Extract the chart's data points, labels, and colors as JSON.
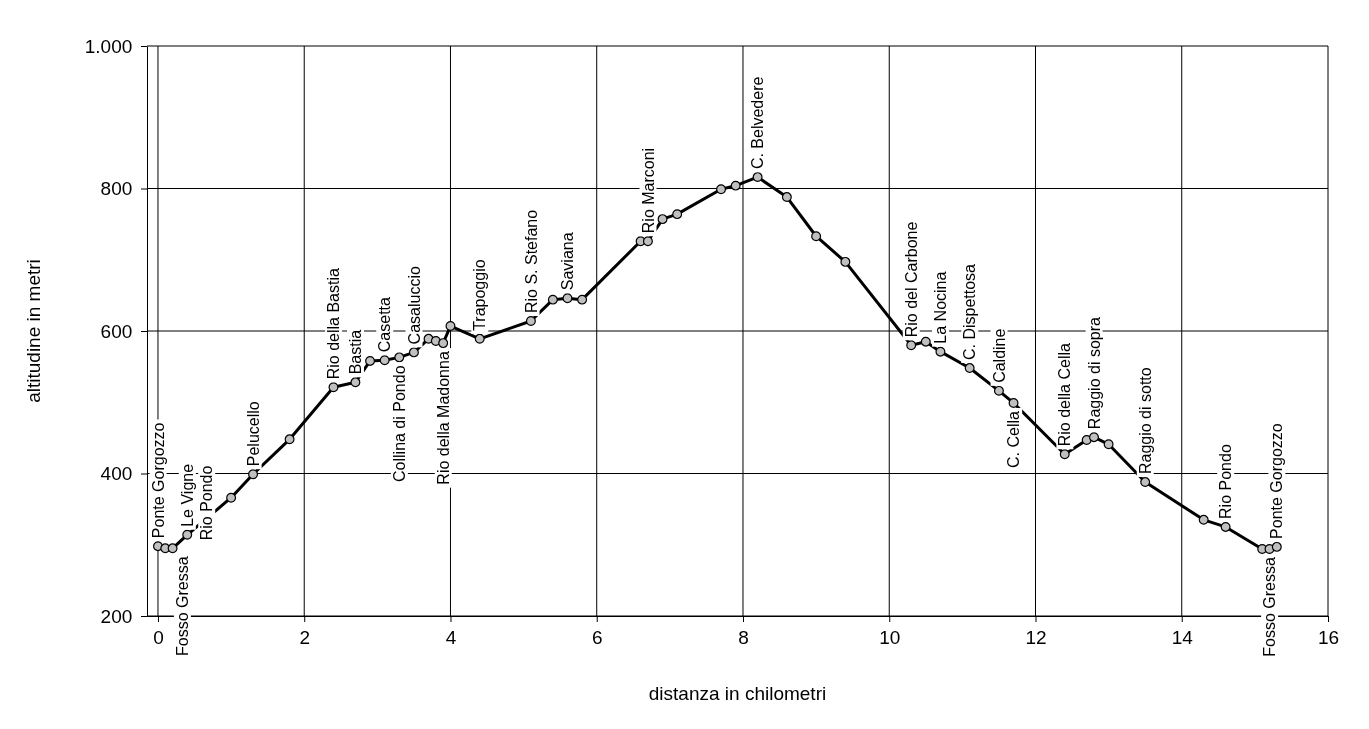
{
  "chart_data": {
    "type": "line",
    "xlabel": "distanza in chilometri",
    "ylabel": "altitudine  in metri",
    "xlim": [
      -0.15,
      16
    ],
    "xticks": [
      0,
      2,
      4,
      6,
      8,
      10,
      12,
      14,
      16
    ],
    "ylim": [
      200,
      1000
    ],
    "yticks": [
      200,
      400,
      600,
      800,
      {
        "value": 1000,
        "label": "1.000"
      }
    ],
    "grid": true,
    "marker": "circle",
    "line_style": "solid",
    "x": [
      0,
      0.1,
      0.2,
      0.4,
      1.0,
      1.3,
      1.8,
      2.4,
      2.7,
      2.9,
      3.1,
      3.3,
      3.5,
      3.7,
      3.8,
      3.9,
      4.0,
      4.4,
      5.1,
      5.4,
      5.6,
      5.8,
      6.6,
      6.7,
      6.9,
      7.1,
      7.7,
      7.9,
      8.2,
      8.6,
      9.0,
      9.4,
      10.3,
      10.5,
      10.7,
      11.1,
      11.5,
      11.7,
      12.4,
      12.7,
      12.8,
      13.0,
      13.5,
      14.3,
      14.6,
      15.1,
      15.2,
      15.3
    ],
    "series": [
      {
        "color": "#000000",
        "values": [
          298,
          295,
          295,
          314,
          366,
          399,
          448,
          521,
          528,
          558,
          559,
          563,
          570,
          589,
          586,
          583,
          607,
          589,
          614,
          644,
          646,
          644,
          726,
          726,
          757,
          764,
          799,
          804,
          816,
          788,
          733,
          697,
          580,
          585,
          571,
          548,
          516,
          499,
          427,
          447,
          451,
          441,
          388,
          335,
          325,
          294,
          294,
          297
        ]
      }
    ],
    "annotations": [
      {
        "text": "Ponte Gorgozzo",
        "x": 0,
        "y": 298
      },
      {
        "text": "Fosso Gressa",
        "x": 0.1,
        "y": 295
      },
      {
        "text": "Le Vigne",
        "x": 0.4,
        "y": 314
      },
      {
        "text": "Rio Pondo",
        "x": 0.2,
        "y": 295
      },
      {
        "text": "Pelucello",
        "x": 1.3,
        "y": 399
      },
      {
        "text": "Rio della Bastia",
        "x": 2.4,
        "y": 521
      },
      {
        "text": "Bastia",
        "x": 2.7,
        "y": 528
      },
      {
        "text": "Casetta",
        "x": 3.1,
        "y": 559
      },
      {
        "text": "Collina di Pondo",
        "x": 3.3,
        "y": 563
      },
      {
        "text": "Casaluccio",
        "x": 3.5,
        "y": 570
      },
      {
        "text": "Rio della Madonna",
        "x": 3.9,
        "y": 583
      },
      {
        "text": "Trapoggio",
        "x": 4.4,
        "y": 589
      },
      {
        "text": "Rio S. Stefano",
        "x": 5.1,
        "y": 614
      },
      {
        "text": "Saviana",
        "x": 5.6,
        "y": 646
      },
      {
        "text": "Rio Marconi",
        "x": 6.7,
        "y": 726
      },
      {
        "text": "C. Belvedere",
        "x": 8.2,
        "y": 816
      },
      {
        "text": "Rio del Carbone",
        "x": 10.3,
        "y": 580
      },
      {
        "text": "La Nocina",
        "x": 10.7,
        "y": 571
      },
      {
        "text": "C. Dispettosa",
        "x": 11.1,
        "y": 548
      },
      {
        "text": "Caldine",
        "x": 11.5,
        "y": 516
      },
      {
        "text": "C. Cella",
        "x": 11.7,
        "y": 499
      },
      {
        "text": "Rio della Cella",
        "x": 12.4,
        "y": 427
      },
      {
        "text": "Raggio di sopra",
        "x": 12.8,
        "y": 451
      },
      {
        "text": "Raggio di sotto",
        "x": 13.5,
        "y": 388
      },
      {
        "text": "Rio Pondo",
        "x": 14.6,
        "y": 325
      },
      {
        "text": "Fosso Gressa",
        "x": 15.2,
        "y": 294
      },
      {
        "text": "Ponte Gorgozzo",
        "x": 15.3,
        "y": 297
      }
    ]
  }
}
